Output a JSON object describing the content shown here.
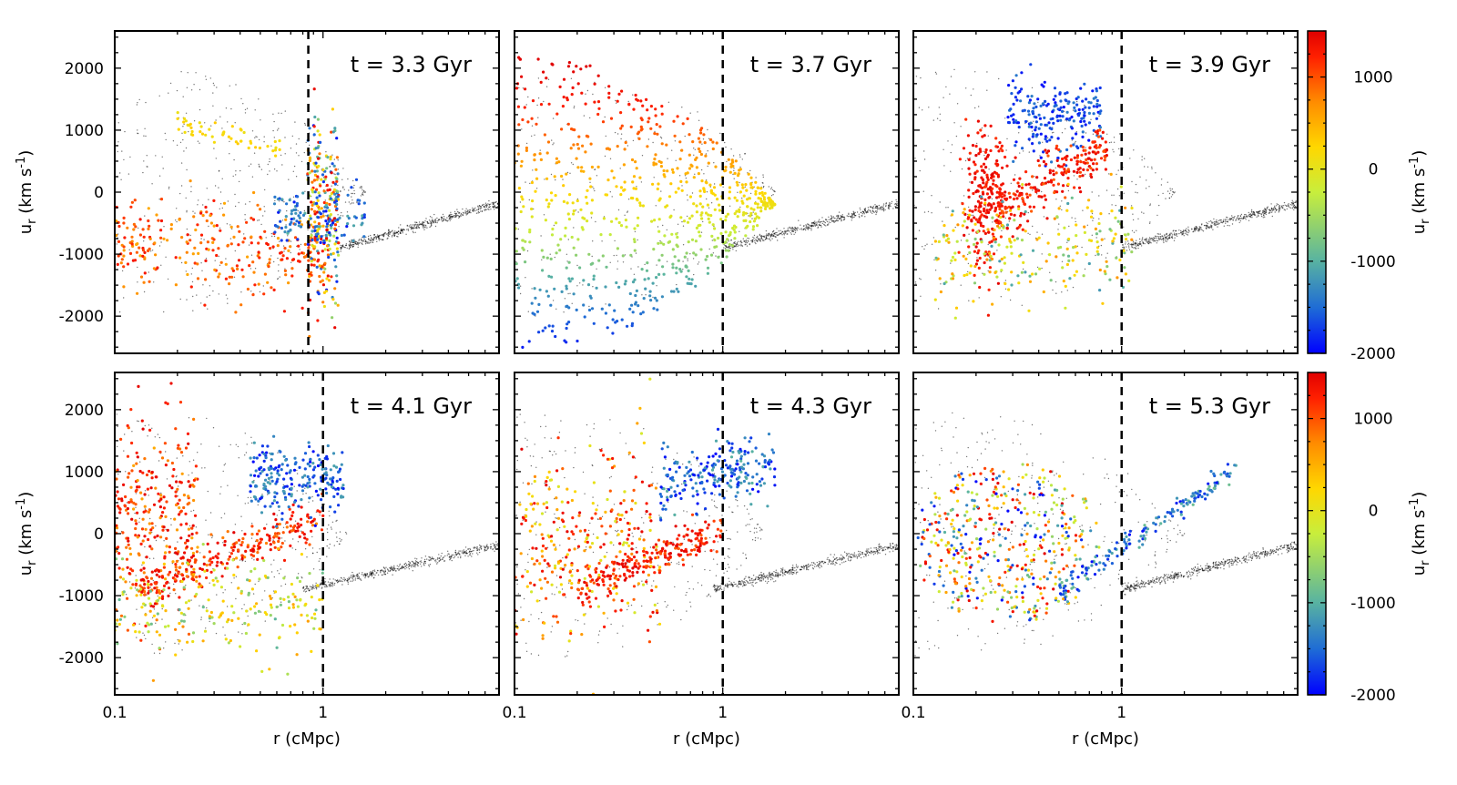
{
  "chart_data": {
    "type": "scatter",
    "title": "",
    "layout": "2x3 grid of panels",
    "xscale": "log",
    "xlabel": "r (cMpc)",
    "ylabel": "u_r (km s^-1)",
    "ylabel_main": "u",
    "ylabel_sub": "r",
    "ylabel_rest": " (km s",
    "ylabel_sup": "-1",
    "ylabel_end": ")",
    "xlim": [
      0.1,
      7
    ],
    "ylim": [
      -2600,
      2600
    ],
    "xticks": [
      0.1,
      1
    ],
    "xtick_labels": [
      "0.1",
      "1"
    ],
    "yticks": [
      -2000,
      -1000,
      0,
      1000,
      2000
    ],
    "ytick_labels": [
      "-2000",
      "-1000",
      "0",
      "1000",
      "2000"
    ],
    "colorbar": {
      "label_main": "u",
      "label_sub": "r",
      "label_rest": " (km s",
      "label_sup": "-1",
      "label_end": ")",
      "range": [
        -2000,
        1500
      ],
      "ticks": [
        -2000,
        -1000,
        0,
        1000
      ],
      "tick_labels": [
        "-2000",
        "-1000",
        "0",
        "1000"
      ],
      "colormap": [
        "#0000ff",
        "#1e6bd6",
        "#5ab4a0",
        "#c8ee3c",
        "#ffd700",
        "#ff8c00",
        "#ff2000",
        "#e00000"
      ]
    },
    "background_color": "#000000",
    "series": [
      {
        "name": "background flow (black dots)",
        "color": "#000000"
      },
      {
        "name": "tracked particles (colored by initial u_r)",
        "color_by": "u_r"
      }
    ],
    "panels": [
      {
        "title": "t = 3.3 Gyr",
        "vline_x": 0.85
      },
      {
        "title": "t = 3.7 Gyr",
        "vline_x": 1.0
      },
      {
        "title": "t = 3.9 Gyr",
        "vline_x": 1.0
      },
      {
        "title": "t = 4.1 Gyr",
        "vline_x": 1.0
      },
      {
        "title": "t = 4.3 Gyr",
        "vline_x": 1.0
      },
      {
        "title": "t = 5.3 Gyr",
        "vline_x": 1.0
      }
    ]
  }
}
